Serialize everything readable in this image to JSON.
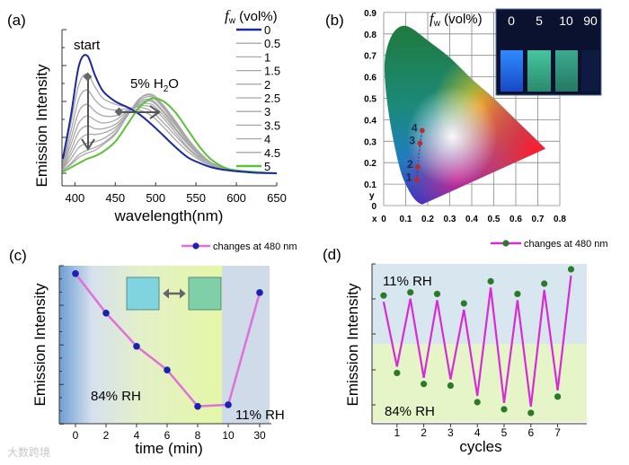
{
  "chart_data": [
    {
      "panel": "(a)",
      "type": "line",
      "xlabel": "wavelength(nm)",
      "ylabel": "Emission Intensity",
      "xlim": [
        384,
        650
      ],
      "ylim": [
        0,
        1
      ],
      "xticks": [
        400,
        450,
        500,
        550,
        600,
        650
      ],
      "legend_title_f": "f",
      "legend_title_sub": "w",
      "legend_title_rest": " (vol%)",
      "legend_placement": "right",
      "annotations": {
        "start": "start",
        "h2o_pre": "5% H",
        "h2o_sub": "2",
        "h2o_post": "O"
      },
      "x": [
        385,
        395,
        405,
        415,
        425,
        435,
        450,
        465,
        480,
        495,
        510,
        525,
        540,
        555,
        570,
        590,
        620,
        650
      ],
      "series": [
        {
          "name": "0",
          "color": "#1a2aa0",
          "values": [
            0.1,
            0.4,
            0.75,
            0.82,
            0.68,
            0.57,
            0.5,
            0.46,
            0.41,
            0.34,
            0.26,
            0.18,
            0.11,
            0.07,
            0.04,
            0.02,
            0.005,
            0
          ]
        },
        {
          "name": "0.5",
          "color": "#a8a8a8",
          "values": [
            0.08,
            0.35,
            0.62,
            0.69,
            0.6,
            0.52,
            0.48,
            0.46,
            0.44,
            0.4,
            0.32,
            0.23,
            0.15,
            0.09,
            0.05,
            0.02,
            0.005,
            0
          ]
        },
        {
          "name": "1",
          "color": "#a8a8a8",
          "values": [
            0.07,
            0.29,
            0.52,
            0.58,
            0.51,
            0.46,
            0.44,
            0.45,
            0.46,
            0.43,
            0.35,
            0.26,
            0.17,
            0.1,
            0.05,
            0.02,
            0.006,
            0
          ]
        },
        {
          "name": "1.5",
          "color": "#a8a8a8",
          "values": [
            0.06,
            0.24,
            0.43,
            0.48,
            0.43,
            0.4,
            0.4,
            0.44,
            0.47,
            0.46,
            0.38,
            0.28,
            0.18,
            0.11,
            0.06,
            0.02,
            0.007,
            0
          ]
        },
        {
          "name": "2",
          "color": "#a8a8a8",
          "values": [
            0.05,
            0.2,
            0.35,
            0.4,
            0.37,
            0.35,
            0.37,
            0.43,
            0.48,
            0.48,
            0.4,
            0.3,
            0.2,
            0.12,
            0.06,
            0.03,
            0.008,
            0
          ]
        },
        {
          "name": "2.5",
          "color": "#a8a8a8",
          "values": [
            0.04,
            0.16,
            0.29,
            0.33,
            0.31,
            0.31,
            0.34,
            0.42,
            0.49,
            0.5,
            0.42,
            0.31,
            0.21,
            0.12,
            0.06,
            0.03,
            0.008,
            0
          ]
        },
        {
          "name": "3",
          "color": "#a8a8a8",
          "values": [
            0.03,
            0.13,
            0.23,
            0.27,
            0.27,
            0.28,
            0.32,
            0.41,
            0.5,
            0.51,
            0.43,
            0.33,
            0.22,
            0.13,
            0.07,
            0.03,
            0.009,
            0
          ]
        },
        {
          "name": "3.5",
          "color": "#a8a8a8",
          "values": [
            0.03,
            0.1,
            0.18,
            0.21,
            0.22,
            0.24,
            0.3,
            0.41,
            0.51,
            0.53,
            0.45,
            0.34,
            0.23,
            0.13,
            0.07,
            0.03,
            0.009,
            0
          ]
        },
        {
          "name": "4",
          "color": "#a8a8a8",
          "values": [
            0.02,
            0.07,
            0.13,
            0.16,
            0.18,
            0.21,
            0.28,
            0.4,
            0.52,
            0.54,
            0.46,
            0.35,
            0.24,
            0.14,
            0.07,
            0.03,
            0.01,
            0
          ]
        },
        {
          "name": "4.5",
          "color": "#a8a8a8",
          "values": [
            0.02,
            0.06,
            0.11,
            0.14,
            0.16,
            0.2,
            0.27,
            0.4,
            0.52,
            0.55,
            0.47,
            0.36,
            0.24,
            0.14,
            0.07,
            0.03,
            0.01,
            0
          ]
        },
        {
          "name": "5",
          "color": "#5cc23a",
          "values": [
            0.01,
            0.04,
            0.07,
            0.1,
            0.12,
            0.15,
            0.22,
            0.34,
            0.46,
            0.52,
            0.5,
            0.42,
            0.3,
            0.18,
            0.09,
            0.03,
            0.01,
            0
          ]
        }
      ]
    },
    {
      "panel": "(b)",
      "type": "scatter",
      "title_f": "f",
      "title_sub": "w",
      "title_rest": " (vol%)",
      "xlabel": "x",
      "ylabel": "y",
      "xlim": [
        0,
        0.8
      ],
      "ylim": [
        0,
        0.9
      ],
      "xticks": [
        "0",
        "0.1",
        "0.2",
        "0.3",
        "0.4",
        "0.5",
        "0.6",
        "0.7",
        "0.8"
      ],
      "yticks": [
        "0",
        "0.1",
        "0.2",
        "0.3",
        "0.4",
        "0.5",
        "0.6",
        "0.7",
        "0.8",
        "0.9"
      ],
      "grid": true,
      "points": [
        {
          "label": "1",
          "x": 0.15,
          "y": 0.12
        },
        {
          "label": "2",
          "x": 0.155,
          "y": 0.18
        },
        {
          "label": "3",
          "x": 0.165,
          "y": 0.29
        },
        {
          "label": "4",
          "x": 0.175,
          "y": 0.35
        }
      ],
      "point_color": "#c0282a",
      "inset_labels": [
        "0",
        "5",
        "10",
        "90"
      ]
    },
    {
      "panel": "(c)",
      "type": "line",
      "xlabel": "time (min)",
      "ylabel": "Emission Intensity",
      "legend": "changes at 480 nm",
      "legend_placement": "top-right",
      "categories": [
        "0",
        "2",
        "4",
        "6",
        "8",
        "10",
        "30"
      ],
      "values": [
        9.5,
        7.0,
        4.9,
        3.4,
        1.1,
        1.2,
        8.3
      ],
      "ylim": [
        0,
        10
      ],
      "line_color": "#e070d8",
      "marker_color": "#1c22b0",
      "annotations": {
        "high_rh": "84% RH",
        "low_rh": "11% RH"
      }
    },
    {
      "panel": "(d)",
      "type": "line",
      "xlabel": "cycles",
      "ylabel": "Emission Intensity",
      "legend": "changes at 480 nm",
      "legend_placement": "top-right",
      "xlim": [
        -0.45,
        7.8
      ],
      "xticks": [
        1,
        2,
        3,
        4,
        5,
        6,
        7
      ],
      "x": [
        0.5,
        1,
        1.5,
        2,
        2.5,
        3,
        3.5,
        4,
        4.5,
        5,
        5.5,
        6,
        6.5,
        7,
        7.5
      ],
      "values": [
        8.0,
        3.1,
        8.2,
        2.4,
        8.1,
        2.3,
        7.5,
        1.25,
        8.9,
        0.8,
        8.1,
        0.57,
        8.75,
        1.6,
        9.66
      ],
      "ylim": [
        0,
        10
      ],
      "line_color": "#d62bd6",
      "marker_color": "#2a7a2a",
      "annotations": {
        "low_rh": "11% RH",
        "high_rh": "84% RH"
      }
    }
  ],
  "watermark": "大数跨境"
}
